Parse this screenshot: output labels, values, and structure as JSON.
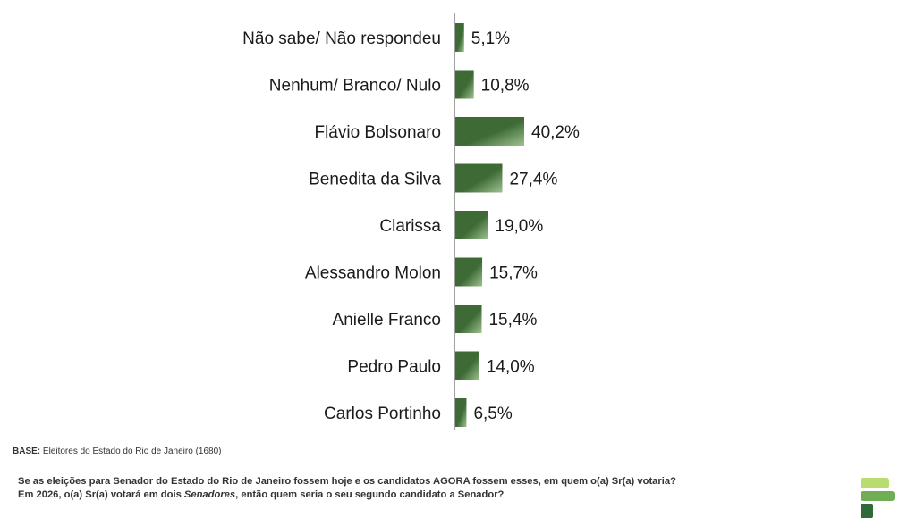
{
  "chart_data": {
    "type": "bar",
    "orientation": "horizontal",
    "categories": [
      "Não sabe/ Não respondeu",
      "Nenhum/ Branco/ Nulo",
      "Flávio Bolsonaro",
      "Benedita da Silva",
      "Clarissa",
      "Alessandro Molon",
      "Anielle Franco",
      "Pedro Paulo",
      "Carlos Portinho"
    ],
    "values": [
      5.1,
      10.8,
      40.2,
      27.4,
      19.0,
      15.7,
      15.4,
      14.0,
      6.5
    ],
    "value_labels": [
      "5,1%",
      "10,8%",
      "40,2%",
      "27,4%",
      "19,0%",
      "15,7%",
      "15,4%",
      "14,0%",
      "6,5%"
    ],
    "bar_color": "#3d6a35",
    "bar_highlight_color": "#9ec28f",
    "xlim": [
      0,
      40.2
    ],
    "grid": false,
    "legend": "none"
  },
  "footer": {
    "base_label": "BASE:",
    "base_text": "Eleitores do Estado do Rio de Janeiro (1680)",
    "question_line1": "Se as eleições para Senador do Estado do Rio de Janeiro fossem hoje e os candidatos AGORA fossem esses, em quem o(a) Sr(a) votaria?",
    "question_line2_before": "Em 2026, o(a) Sr(a) votará em dois ",
    "question_line2_emph": "Senadores",
    "question_line2_after": ", então quem seria o seu segundo candidato a Senador?"
  },
  "logo": {
    "icon": "brand-logo-icon",
    "colors": [
      "#b8dc6e",
      "#6fae55",
      "#2f6b3a"
    ]
  }
}
